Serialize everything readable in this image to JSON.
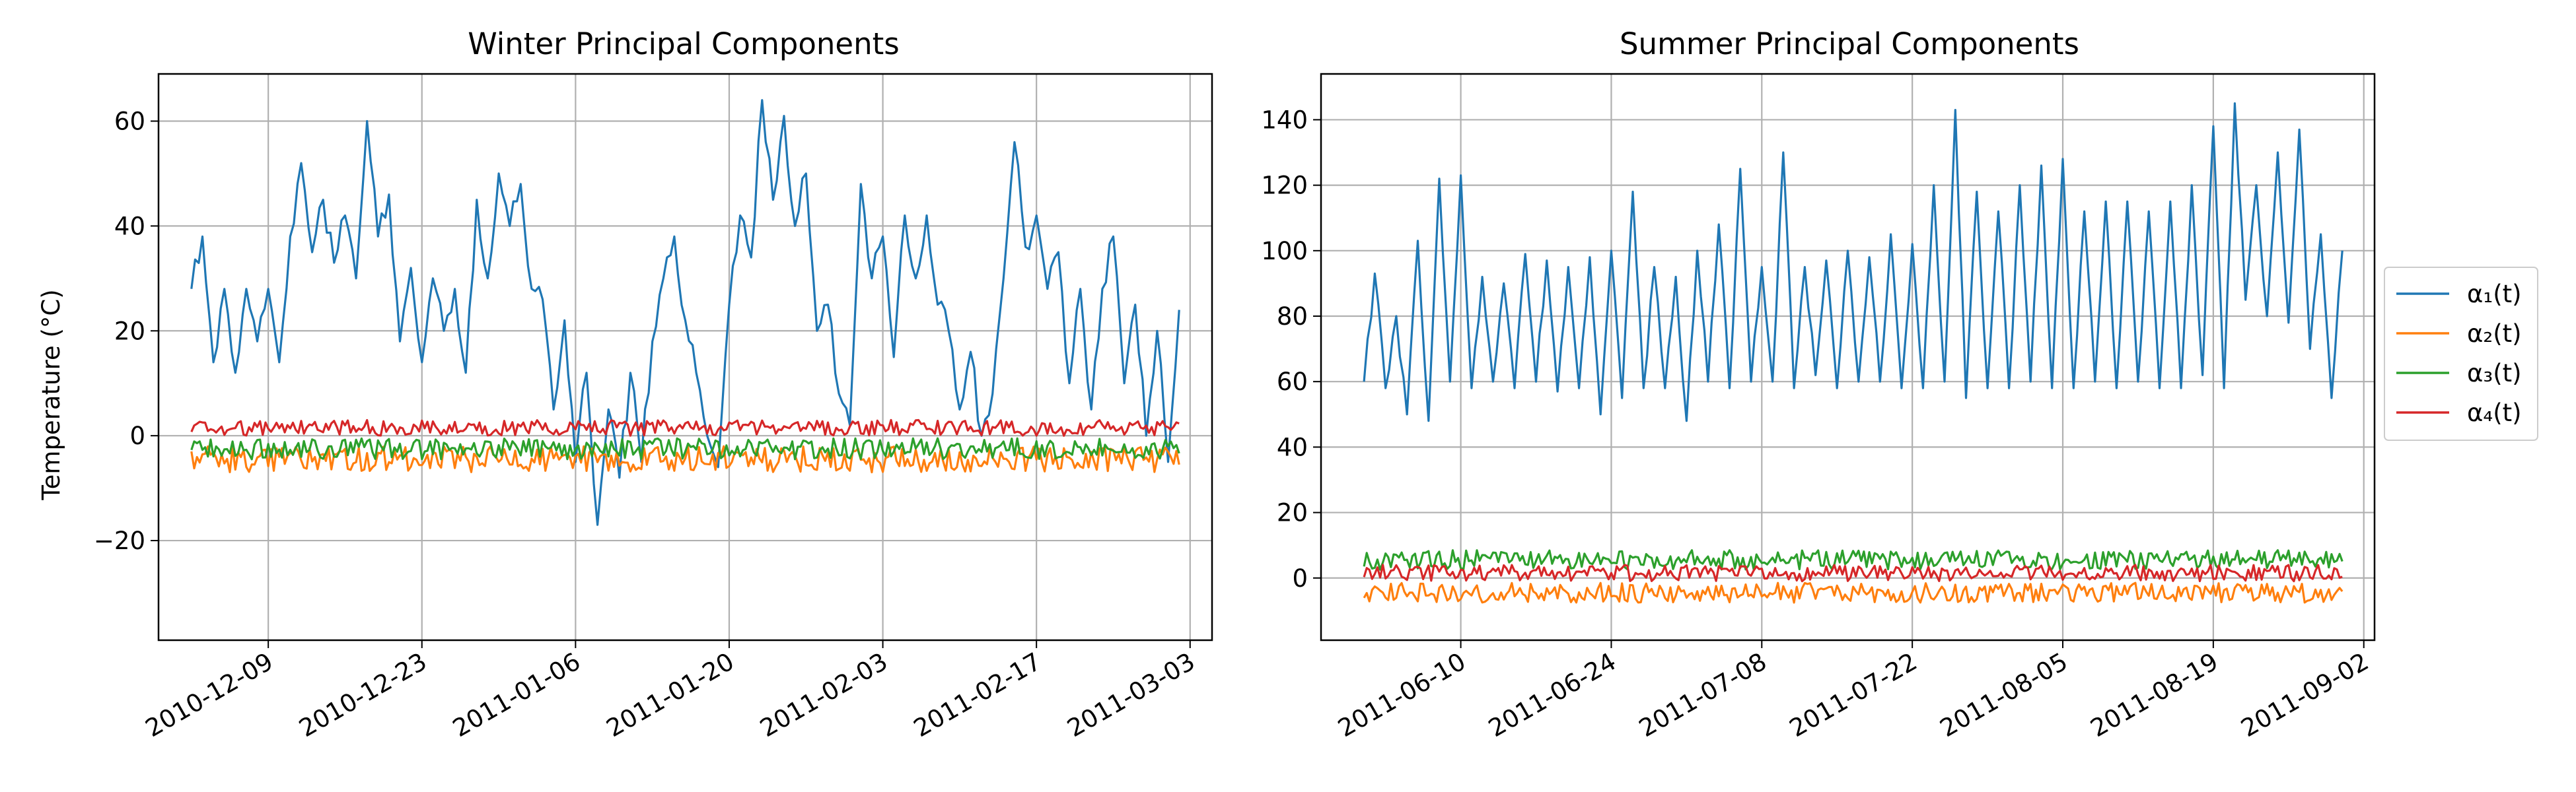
{
  "chart_data": [
    {
      "type": "line",
      "title": "Winter Principal Components",
      "xlabel": "",
      "ylabel": "Temperature ($^\\circ$C)",
      "ylabel_display": "Temperature (°C)",
      "x_start": "2010-12-02",
      "x_end": "2011-03-02",
      "xlim": [
        "2010-11-29",
        "2011-03-05"
      ],
      "ylim": [
        -39,
        69
      ],
      "x_ticks": [
        "2010-12-09",
        "2010-12-23",
        "2011-01-06",
        "2011-01-20",
        "2011-02-03",
        "2011-02-17",
        "2011-03-03"
      ],
      "y_ticks": [
        {
          "value": -20,
          "label": "−20"
        },
        {
          "value": 0,
          "label": "0"
        },
        {
          "value": 20,
          "label": "20"
        },
        {
          "value": 40,
          "label": "40"
        },
        {
          "value": 60,
          "label": "60"
        }
      ],
      "grid": true,
      "series": [
        {
          "name": "α₁(t)",
          "color": "#1f77b4",
          "points": [
            [
              "2010-12-02",
              28
            ],
            [
              "2010-12-03",
              38
            ],
            [
              "2010-12-04",
              14
            ],
            [
              "2010-12-05",
              28
            ],
            [
              "2010-12-06",
              12
            ],
            [
              "2010-12-07",
              28
            ],
            [
              "2010-12-08",
              18
            ],
            [
              "2010-12-09",
              28
            ],
            [
              "2010-12-10",
              14
            ],
            [
              "2010-12-11",
              38
            ],
            [
              "2010-12-12",
              52
            ],
            [
              "2010-12-13",
              35
            ],
            [
              "2010-12-14",
              45
            ],
            [
              "2010-12-15",
              33
            ],
            [
              "2010-12-16",
              42
            ],
            [
              "2010-12-17",
              30
            ],
            [
              "2010-12-18",
              60
            ],
            [
              "2010-12-19",
              38
            ],
            [
              "2010-12-20",
              46
            ],
            [
              "2010-12-21",
              18
            ],
            [
              "2010-12-22",
              32
            ],
            [
              "2010-12-23",
              14
            ],
            [
              "2010-12-24",
              30
            ],
            [
              "2010-12-25",
              20
            ],
            [
              "2010-12-26",
              28
            ],
            [
              "2010-12-27",
              12
            ],
            [
              "2010-12-28",
              45
            ],
            [
              "2010-12-29",
              30
            ],
            [
              "2010-12-30",
              50
            ],
            [
              "2010-12-31",
              40
            ],
            [
              "2011-01-01",
              48
            ],
            [
              "2011-01-02",
              28
            ],
            [
              "2011-01-03",
              26
            ],
            [
              "2011-01-04",
              5
            ],
            [
              "2011-01-05",
              22
            ],
            [
              "2011-01-06",
              -5
            ],
            [
              "2011-01-07",
              12
            ],
            [
              "2011-01-08",
              -17
            ],
            [
              "2011-01-09",
              5
            ],
            [
              "2011-01-10",
              -8
            ],
            [
              "2011-01-11",
              12
            ],
            [
              "2011-01-12",
              -5
            ],
            [
              "2011-01-13",
              18
            ],
            [
              "2011-01-14",
              30
            ],
            [
              "2011-01-15",
              38
            ],
            [
              "2011-01-16",
              22
            ],
            [
              "2011-01-17",
              12
            ],
            [
              "2011-01-18",
              0
            ],
            [
              "2011-01-19",
              -6
            ],
            [
              "2011-01-20",
              25
            ],
            [
              "2011-01-21",
              42
            ],
            [
              "2011-01-22",
              34
            ],
            [
              "2011-01-23",
              64
            ],
            [
              "2011-01-24",
              45
            ],
            [
              "2011-01-25",
              61
            ],
            [
              "2011-01-26",
              40
            ],
            [
              "2011-01-27",
              50
            ],
            [
              "2011-01-28",
              20
            ],
            [
              "2011-01-29",
              25
            ],
            [
              "2011-01-30",
              8
            ],
            [
              "2011-01-31",
              2
            ],
            [
              "2011-02-01",
              48
            ],
            [
              "2011-02-02",
              30
            ],
            [
              "2011-02-03",
              38
            ],
            [
              "2011-02-04",
              15
            ],
            [
              "2011-02-05",
              42
            ],
            [
              "2011-02-06",
              30
            ],
            [
              "2011-02-07",
              42
            ],
            [
              "2011-02-08",
              25
            ],
            [
              "2011-02-09",
              20
            ],
            [
              "2011-02-10",
              5
            ],
            [
              "2011-02-11",
              16
            ],
            [
              "2011-02-12",
              0
            ],
            [
              "2011-02-13",
              8
            ],
            [
              "2011-02-14",
              30
            ],
            [
              "2011-02-15",
              56
            ],
            [
              "2011-02-16",
              36
            ],
            [
              "2011-02-17",
              42
            ],
            [
              "2011-02-18",
              28
            ],
            [
              "2011-02-19",
              35
            ],
            [
              "2011-02-20",
              10
            ],
            [
              "2011-02-21",
              28
            ],
            [
              "2011-02-22",
              5
            ],
            [
              "2011-02-23",
              28
            ],
            [
              "2011-02-24",
              38
            ],
            [
              "2011-02-25",
              10
            ],
            [
              "2011-02-26",
              25
            ],
            [
              "2011-02-27",
              0
            ],
            [
              "2011-02-28",
              20
            ],
            [
              "2011-03-01",
              -5
            ],
            [
              "2011-03-02",
              24
            ]
          ]
        },
        {
          "name": "α₂(t)",
          "color": "#ff7f0e",
          "noise": {
            "base": -4.5,
            "amp": 2.5
          }
        },
        {
          "name": "α₃(t)",
          "color": "#2ca02c",
          "noise": {
            "base": -2.5,
            "amp": 2.0
          }
        },
        {
          "name": "α₄(t)",
          "color": "#d62728",
          "noise": {
            "base": 1.5,
            "amp": 1.5
          }
        }
      ]
    },
    {
      "type": "line",
      "title": "Summer Principal Components",
      "xlabel": "",
      "ylabel": "",
      "x_start": "2011-06-01",
      "x_end": "2011-08-31",
      "xlim": [
        "2011-05-28",
        "2011-09-03"
      ],
      "ylim": [
        -19,
        154
      ],
      "x_ticks": [
        "2011-06-10",
        "2011-06-24",
        "2011-07-08",
        "2011-07-22",
        "2011-08-05",
        "2011-08-19",
        "2011-09-02"
      ],
      "y_ticks": [
        {
          "value": 0,
          "label": "0"
        },
        {
          "value": 20,
          "label": "20"
        },
        {
          "value": 40,
          "label": "40"
        },
        {
          "value": 60,
          "label": "60"
        },
        {
          "value": 80,
          "label": "80"
        },
        {
          "value": 100,
          "label": "100"
        },
        {
          "value": 120,
          "label": "120"
        },
        {
          "value": 140,
          "label": "140"
        }
      ],
      "grid": true,
      "series": [
        {
          "name": "α₁(t)",
          "color": "#1f77b4",
          "points": [
            [
              "2011-06-01",
              60
            ],
            [
              "2011-06-02",
              93
            ],
            [
              "2011-06-03",
              58
            ],
            [
              "2011-06-04",
              80
            ],
            [
              "2011-06-05",
              50
            ],
            [
              "2011-06-06",
              103
            ],
            [
              "2011-06-07",
              48
            ],
            [
              "2011-06-08",
              122
            ],
            [
              "2011-06-09",
              60
            ],
            [
              "2011-06-10",
              123
            ],
            [
              "2011-06-11",
              58
            ],
            [
              "2011-06-12",
              92
            ],
            [
              "2011-06-13",
              60
            ],
            [
              "2011-06-14",
              90
            ],
            [
              "2011-06-15",
              58
            ],
            [
              "2011-06-16",
              99
            ],
            [
              "2011-06-17",
              60
            ],
            [
              "2011-06-18",
              97
            ],
            [
              "2011-06-19",
              57
            ],
            [
              "2011-06-20",
              95
            ],
            [
              "2011-06-21",
              58
            ],
            [
              "2011-06-22",
              98
            ],
            [
              "2011-06-23",
              50
            ],
            [
              "2011-06-24",
              100
            ],
            [
              "2011-06-25",
              55
            ],
            [
              "2011-06-26",
              118
            ],
            [
              "2011-06-27",
              58
            ],
            [
              "2011-06-28",
              95
            ],
            [
              "2011-06-29",
              58
            ],
            [
              "2011-06-30",
              92
            ],
            [
              "2011-07-01",
              48
            ],
            [
              "2011-07-02",
              100
            ],
            [
              "2011-07-03",
              60
            ],
            [
              "2011-07-04",
              108
            ],
            [
              "2011-07-05",
              58
            ],
            [
              "2011-07-06",
              125
            ],
            [
              "2011-07-07",
              60
            ],
            [
              "2011-07-08",
              95
            ],
            [
              "2011-07-09",
              60
            ],
            [
              "2011-07-10",
              130
            ],
            [
              "2011-07-11",
              58
            ],
            [
              "2011-07-12",
              95
            ],
            [
              "2011-07-13",
              62
            ],
            [
              "2011-07-14",
              97
            ],
            [
              "2011-07-15",
              58
            ],
            [
              "2011-07-16",
              100
            ],
            [
              "2011-07-17",
              60
            ],
            [
              "2011-07-18",
              98
            ],
            [
              "2011-07-19",
              60
            ],
            [
              "2011-07-20",
              105
            ],
            [
              "2011-07-21",
              58
            ],
            [
              "2011-07-22",
              102
            ],
            [
              "2011-07-23",
              58
            ],
            [
              "2011-07-24",
              120
            ],
            [
              "2011-07-25",
              60
            ],
            [
              "2011-07-26",
              143
            ],
            [
              "2011-07-27",
              55
            ],
            [
              "2011-07-28",
              118
            ],
            [
              "2011-07-29",
              58
            ],
            [
              "2011-07-30",
              112
            ],
            [
              "2011-07-31",
              58
            ],
            [
              "2011-08-01",
              120
            ],
            [
              "2011-08-02",
              60
            ],
            [
              "2011-08-03",
              126
            ],
            [
              "2011-08-04",
              58
            ],
            [
              "2011-08-05",
              128
            ],
            [
              "2011-08-06",
              58
            ],
            [
              "2011-08-07",
              112
            ],
            [
              "2011-08-08",
              60
            ],
            [
              "2011-08-09",
              115
            ],
            [
              "2011-08-10",
              58
            ],
            [
              "2011-08-11",
              115
            ],
            [
              "2011-08-12",
              60
            ],
            [
              "2011-08-13",
              112
            ],
            [
              "2011-08-14",
              58
            ],
            [
              "2011-08-15",
              115
            ],
            [
              "2011-08-16",
              58
            ],
            [
              "2011-08-17",
              120
            ],
            [
              "2011-08-18",
              62
            ],
            [
              "2011-08-19",
              138
            ],
            [
              "2011-08-20",
              58
            ],
            [
              "2011-08-21",
              145
            ],
            [
              "2011-08-22",
              85
            ],
            [
              "2011-08-23",
              120
            ],
            [
              "2011-08-24",
              80
            ],
            [
              "2011-08-25",
              130
            ],
            [
              "2011-08-26",
              78
            ],
            [
              "2011-08-27",
              137
            ],
            [
              "2011-08-28",
              70
            ],
            [
              "2011-08-29",
              105
            ],
            [
              "2011-08-30",
              55
            ],
            [
              "2011-08-31",
              100
            ]
          ]
        },
        {
          "name": "α₂(t)",
          "color": "#ff7f0e",
          "noise": {
            "base": -4.5,
            "amp": 3.0
          }
        },
        {
          "name": "α₃(t)",
          "color": "#2ca02c",
          "noise": {
            "base": 5.5,
            "amp": 3.0
          }
        },
        {
          "name": "α₄(t)",
          "color": "#d62728",
          "noise": {
            "base": 1.5,
            "amp": 2.5
          }
        }
      ]
    }
  ],
  "legend": {
    "placement": "right, outside",
    "items": [
      {
        "label": "α₁(t)",
        "color": "#1f77b4"
      },
      {
        "label": "α₂(t)",
        "color": "#ff7f0e"
      },
      {
        "label": "α₃(t)",
        "color": "#2ca02c"
      },
      {
        "label": "α₄(t)",
        "color": "#d62728"
      }
    ]
  }
}
